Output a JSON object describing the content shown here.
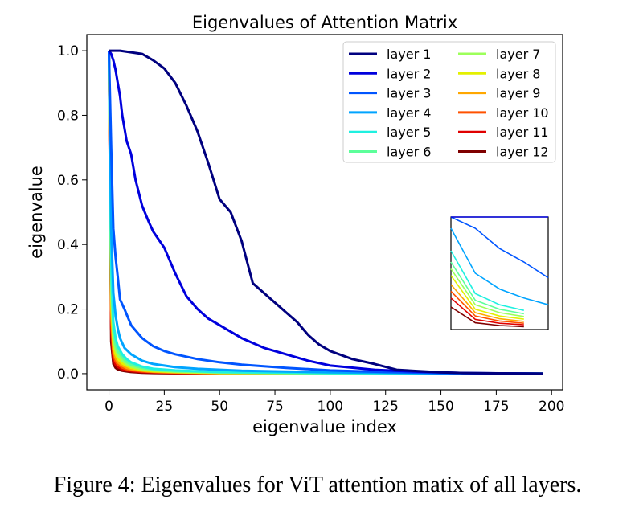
{
  "caption": "Figure 4: Eigenvalues for ViT attention matix of all layers.",
  "chart_data": {
    "type": "line",
    "title": "Eigenvalues of Attention Matrix",
    "xlabel": "eigenvalue index",
    "ylabel": "eigenvalue",
    "xlim": [
      -10,
      205
    ],
    "ylim": [
      -0.05,
      1.05
    ],
    "xticks": [
      0,
      25,
      50,
      75,
      100,
      125,
      150,
      175,
      200
    ],
    "yticks": [
      0.0,
      0.2,
      0.4,
      0.6,
      0.8,
      1.0
    ],
    "xtick_labels": [
      "0",
      "25",
      "50",
      "75",
      "100",
      "125",
      "150",
      "175",
      "200"
    ],
    "ytick_labels": [
      "0.0",
      "0.2",
      "0.4",
      "0.6",
      "0.8",
      "1.0"
    ],
    "legend_position": "top-right",
    "inset": "magnified view near index 0",
    "series": [
      {
        "name": "layer 1",
        "color": "#00007f",
        "x": [
          0,
          5,
          10,
          15,
          20,
          25,
          30,
          35,
          40,
          45,
          50,
          55,
          60,
          65,
          70,
          75,
          80,
          85,
          90,
          95,
          100,
          110,
          120,
          130,
          140,
          150,
          160,
          175,
          196
        ],
        "y": [
          1.0,
          1.0,
          0.995,
          0.99,
          0.97,
          0.945,
          0.9,
          0.83,
          0.75,
          0.65,
          0.54,
          0.5,
          0.41,
          0.28,
          0.25,
          0.22,
          0.19,
          0.16,
          0.12,
          0.09,
          0.07,
          0.045,
          0.03,
          0.012,
          0.008,
          0.004,
          0.002,
          0.001,
          0.0
        ]
      },
      {
        "name": "layer 2",
        "color": "#0000dd",
        "x": [
          0,
          1,
          2,
          3,
          4,
          5,
          6,
          8,
          10,
          12,
          15,
          18,
          20,
          25,
          30,
          35,
          40,
          45,
          50,
          55,
          60,
          70,
          80,
          90,
          100,
          120,
          140,
          160,
          196
        ],
        "y": [
          1.0,
          0.99,
          0.97,
          0.94,
          0.9,
          0.86,
          0.8,
          0.72,
          0.68,
          0.6,
          0.52,
          0.47,
          0.44,
          0.39,
          0.31,
          0.24,
          0.2,
          0.17,
          0.15,
          0.13,
          0.11,
          0.08,
          0.06,
          0.04,
          0.025,
          0.012,
          0.006,
          0.002,
          0.0
        ]
      },
      {
        "name": "layer 3",
        "color": "#0055ff",
        "x": [
          0,
          1,
          2,
          3,
          4,
          5,
          7,
          10,
          15,
          20,
          25,
          30,
          40,
          50,
          60,
          80,
          100,
          125,
          150,
          196
        ],
        "y": [
          1.0,
          0.7,
          0.45,
          0.36,
          0.3,
          0.23,
          0.2,
          0.15,
          0.11,
          0.085,
          0.07,
          0.06,
          0.045,
          0.035,
          0.028,
          0.018,
          0.01,
          0.005,
          0.002,
          0.0
        ]
      },
      {
        "name": "layer 4",
        "color": "#00a4ff",
        "x": [
          0,
          1,
          2,
          3,
          4,
          5,
          7,
          10,
          15,
          20,
          30,
          40,
          60,
          100,
          150,
          196
        ],
        "y": [
          1.0,
          0.45,
          0.25,
          0.18,
          0.14,
          0.11,
          0.08,
          0.06,
          0.04,
          0.03,
          0.02,
          0.015,
          0.009,
          0.004,
          0.001,
          0.0
        ]
      },
      {
        "name": "layer 5",
        "color": "#1ff0e0",
        "x": [
          0,
          1,
          2,
          3,
          4,
          6,
          8,
          10,
          15,
          20,
          30,
          50,
          100,
          196
        ],
        "y": [
          1.0,
          0.35,
          0.16,
          0.11,
          0.085,
          0.06,
          0.045,
          0.035,
          0.022,
          0.015,
          0.01,
          0.005,
          0.002,
          0.0
        ]
      },
      {
        "name": "layer 6",
        "color": "#5cff9a",
        "x": [
          0,
          1,
          2,
          3,
          4,
          6,
          8,
          10,
          15,
          20,
          30,
          50,
          100,
          196
        ],
        "y": [
          1.0,
          0.3,
          0.13,
          0.09,
          0.07,
          0.05,
          0.036,
          0.028,
          0.018,
          0.012,
          0.008,
          0.004,
          0.001,
          0.0
        ]
      },
      {
        "name": "layer 7",
        "color": "#9cff5a",
        "x": [
          0,
          1,
          2,
          3,
          4,
          6,
          8,
          10,
          15,
          20,
          30,
          50,
          100,
          196
        ],
        "y": [
          1.0,
          0.27,
          0.11,
          0.075,
          0.058,
          0.04,
          0.03,
          0.022,
          0.014,
          0.01,
          0.006,
          0.003,
          0.001,
          0.0
        ]
      },
      {
        "name": "layer 8",
        "color": "#e4f000",
        "x": [
          0,
          1,
          2,
          3,
          4,
          6,
          8,
          10,
          15,
          20,
          30,
          50,
          100,
          196
        ],
        "y": [
          1.0,
          0.24,
          0.09,
          0.06,
          0.046,
          0.032,
          0.024,
          0.018,
          0.011,
          0.008,
          0.005,
          0.002,
          0.001,
          0.0
        ]
      },
      {
        "name": "layer 9",
        "color": "#ffa700",
        "x": [
          0,
          1,
          2,
          3,
          4,
          6,
          8,
          10,
          15,
          20,
          30,
          50,
          100,
          196
        ],
        "y": [
          1.0,
          0.2,
          0.075,
          0.048,
          0.036,
          0.025,
          0.018,
          0.014,
          0.009,
          0.006,
          0.004,
          0.002,
          0.001,
          0.0
        ]
      },
      {
        "name": "layer 10",
        "color": "#ff5200",
        "x": [
          0,
          1,
          2,
          3,
          4,
          6,
          8,
          10,
          15,
          20,
          30,
          50,
          100,
          196
        ],
        "y": [
          1.0,
          0.17,
          0.06,
          0.038,
          0.028,
          0.019,
          0.014,
          0.011,
          0.007,
          0.005,
          0.003,
          0.001,
          0.0,
          0.0
        ]
      },
      {
        "name": "layer 11",
        "color": "#e00000",
        "x": [
          0,
          1,
          2,
          3,
          4,
          6,
          8,
          10,
          15,
          20,
          30,
          50,
          100,
          196
        ],
        "y": [
          1.0,
          0.14,
          0.045,
          0.028,
          0.021,
          0.014,
          0.01,
          0.008,
          0.005,
          0.004,
          0.002,
          0.001,
          0.0,
          0.0
        ]
      },
      {
        "name": "layer 12",
        "color": "#7f0000",
        "x": [
          0,
          1,
          2,
          3,
          4,
          6,
          8,
          10,
          15,
          20,
          30,
          50,
          100,
          196
        ],
        "y": [
          1.0,
          0.1,
          0.03,
          0.018,
          0.013,
          0.009,
          0.007,
          0.005,
          0.003,
          0.002,
          0.001,
          0.0,
          0.0,
          0.0
        ]
      }
    ]
  }
}
